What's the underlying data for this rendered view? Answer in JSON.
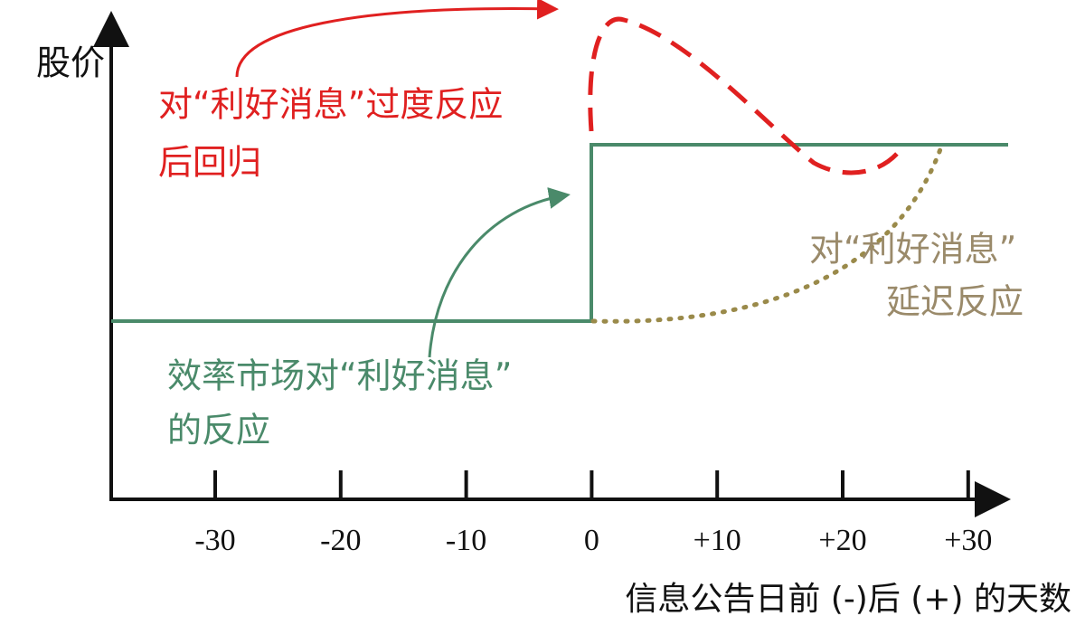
{
  "y_axis_label": "股价",
  "x_axis_label": "信息公告日前 (-)后 (+) 的天数",
  "x_tick_labels": [
    "-30",
    "-20",
    "-10",
    "0",
    "+10",
    "+20",
    "+30"
  ],
  "annotations": {
    "overreaction": [
      "对“利好消息”过度反应",
      "后回归"
    ],
    "delayed": [
      "对“利好消息”",
      "延迟反应"
    ],
    "efficient": [
      "效率市场对“利好消息”",
      "的反应"
    ]
  }
}
